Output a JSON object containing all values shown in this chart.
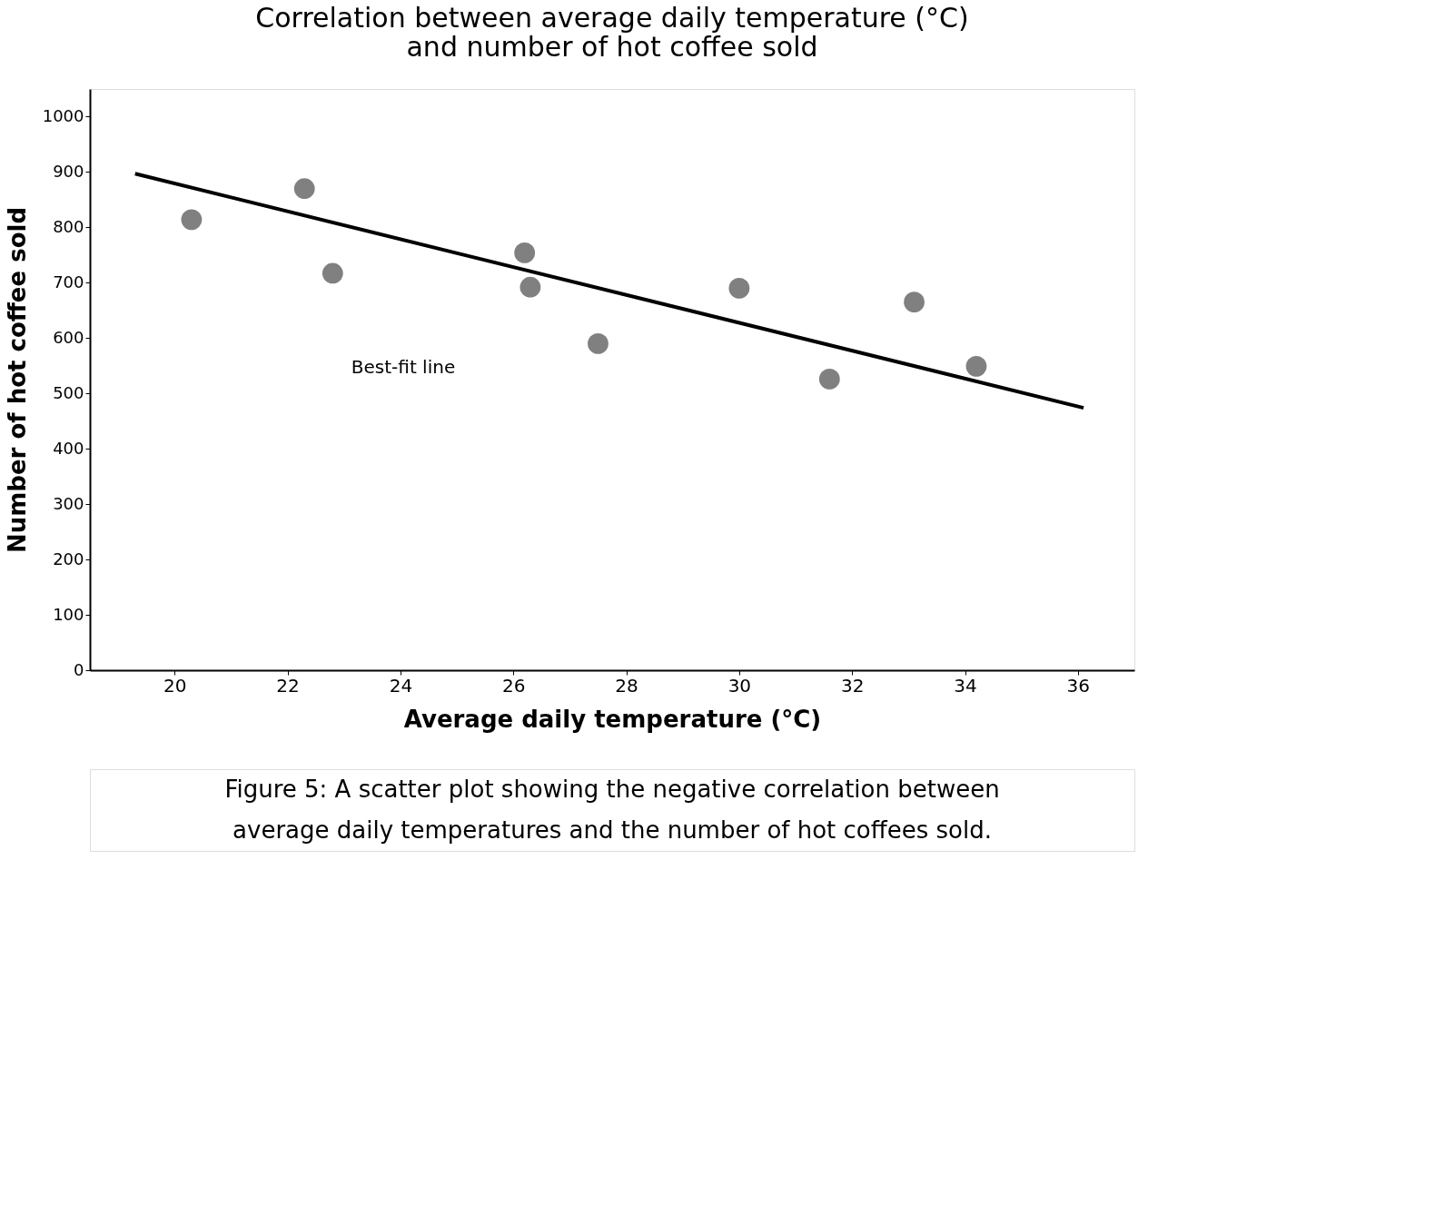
{
  "chart_data": {
    "type": "scatter",
    "title": [
      "Correlation between average daily temperature (°C)",
      "and number of hot coffee sold"
    ],
    "xlabel": "Average daily temperature (°C)",
    "ylabel": "Number of hot coffee sold",
    "xlim": [
      18.5,
      37
    ],
    "xticks": [
      20,
      22,
      24,
      26,
      28,
      30,
      32,
      34,
      36
    ],
    "ylim": [
      0,
      1050
    ],
    "yticks": [
      0,
      100,
      200,
      300,
      400,
      500,
      600,
      700,
      800,
      900,
      1000
    ],
    "grid": false,
    "series": [
      {
        "marker": "circle",
        "color": "#808080",
        "x": [
          20.3,
          22.3,
          22.8,
          26.2,
          26.3,
          27.5,
          30.0,
          31.6,
          33.1,
          34.2
        ],
        "values": [
          814,
          870,
          717,
          754,
          692,
          590,
          690,
          526,
          665,
          549
        ]
      },
      {
        "type": "line",
        "marker": "none",
        "line_style": "solid",
        "color": "#000000",
        "x": [
          19.3,
          36.1
        ],
        "values": [
          897,
          474
        ]
      }
    ],
    "annotations": [
      "Best-fit line",
      "Figure 5: A scatter plot showing the negative correlation between",
      "average daily temperatures and the number of hot coffees sold."
    ]
  }
}
